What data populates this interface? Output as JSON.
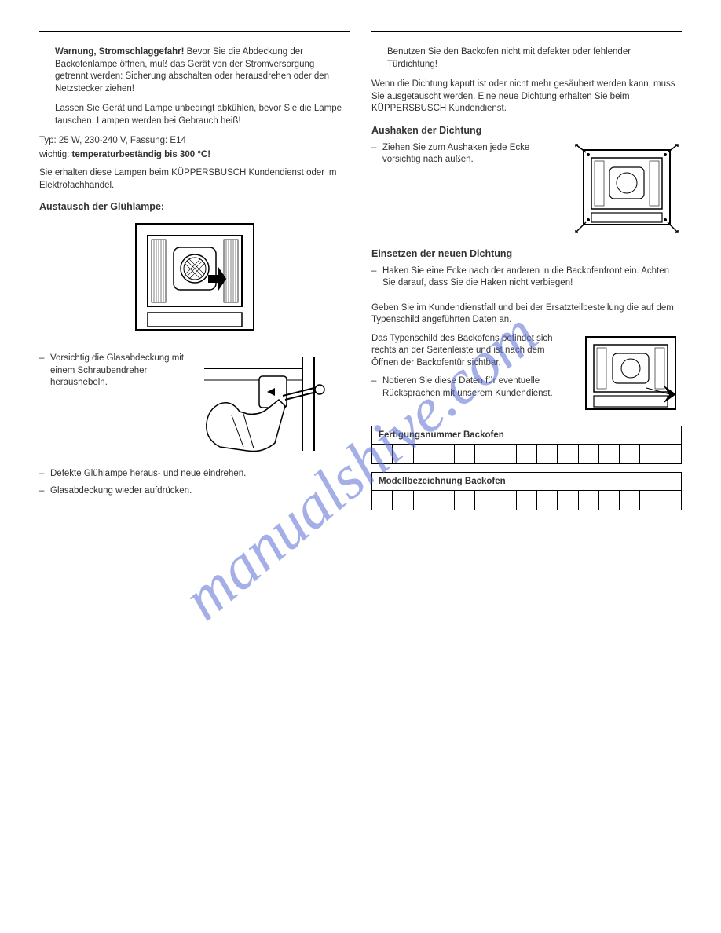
{
  "watermark": "manualshive.com",
  "left": {
    "warning_strong": "Warnung, Stromschlaggefahr!",
    "warning_text": " Bevor Sie die Abdeckung der Backofenlampe öffnen, muß das Gerät von der Stromversorgung getrennt werden: Sicherung abschalten oder herausdrehen oder den Netzstecker ziehen!",
    "cool_text": "Lassen Sie Gerät und Lampe unbedingt abkühlen, bevor Sie die Lampe tauschen. Lampen werden bei Gebrauch heiß!",
    "typ": "Typ: 25 W, 230-240 V, Fassung: E14",
    "important_prefix": "wichtig: ",
    "important_bold": "temperaturbeständig bis 300 °C!",
    "obtain": "Sie erhalten diese Lampen beim KÜPPERSBUSCH Kundendienst oder im Elektrofachhandel.",
    "section_replace": "Austausch der Glühlampe:",
    "step1": "Vorsichtig die Glasabdeckung mit einem Schraubendreher heraushebeln.",
    "step2": "Defekte Glühlampe heraus- und neue eindrehen.",
    "step3": "Glasabdeckung wieder aufdrücken."
  },
  "right": {
    "intro": "Benutzen Sie den Backofen nicht mit defekter oder fehlender Türdichtung!",
    "broken": "Wenn die Dichtung kaputt ist oder nicht mehr gesäubert werden kann, muss Sie ausgetauscht werden. Eine neue Dichtung erhalten Sie beim KÜPPERSBUSCH Kundendienst.",
    "unhook_title": "Aushaken der Dichtung",
    "unhook_step": "Ziehen Sie zum Aushaken jede Ecke vorsichtig nach außen.",
    "insert_title": "Einsetzen der neuen Dichtung",
    "insert_step": "Haken Sie eine Ecke nach der anderen in die Backofenfront ein. Achten Sie darauf, dass Sie die Haken nicht verbiegen!",
    "service_text": "Geben Sie im Kundendienstfall und bei der Ersatzteilbestellung die auf dem Typenschild angeführten Daten an.",
    "typeplate_text": "Das Typenschild des Backofens befindet sich rechts an der Seitenleiste und ist nach dem Öffnen der Backofentür sichtbar.",
    "note_step": "Notieren Sie diese Daten für eventuelle Rücksprachen mit unserem Kundendienst.",
    "table1_header": "Fertigungsnummer Backofen",
    "table2_header": "Modellbezeichnung Backofen",
    "cell_count": 15
  },
  "colors": {
    "text": "#333333",
    "watermark": "#5b6fd4",
    "border": "#000000",
    "bg": "#ffffff"
  }
}
